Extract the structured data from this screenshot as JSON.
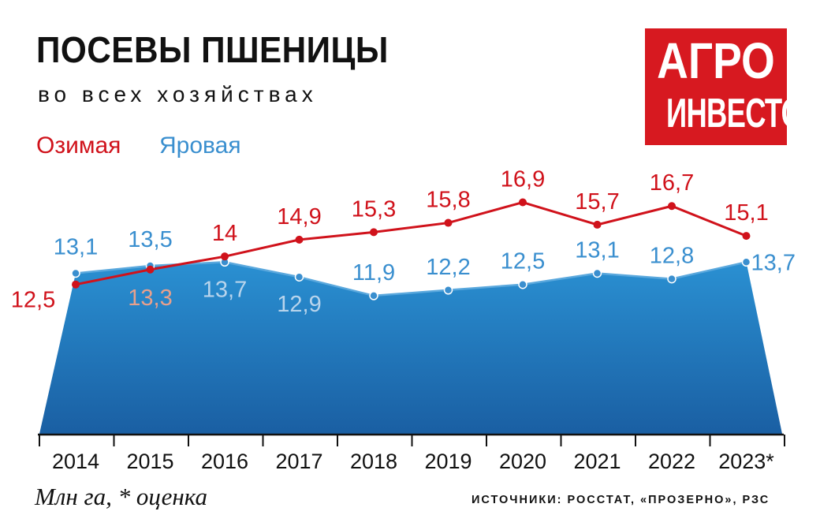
{
  "header": {
    "title": "ПОСЕВЫ ПШЕНИЦЫ",
    "subtitle": "во всех хозяйствах"
  },
  "logo": {
    "line1": "АГРО",
    "line2": "ИНВЕСТОР",
    "color": "#d71920"
  },
  "legend": {
    "winter": "Озимая",
    "spring": "Яровая"
  },
  "colors": {
    "winter": "#d0121b",
    "spring": "#3a8fcf",
    "area_top": "#2a90d2",
    "area_bottom": "#1a5fa3",
    "light_label": "#e8a08c",
    "light_blue_label": "#b8d4ec"
  },
  "chart_data": {
    "type": "line",
    "categories": [
      "2014",
      "2015",
      "2016",
      "2017",
      "2018",
      "2019",
      "2020",
      "2021",
      "2022",
      "2023*"
    ],
    "series": [
      {
        "name": "Озимая",
        "values": [
          12.5,
          13.3,
          14.0,
          14.9,
          15.3,
          15.8,
          16.9,
          15.7,
          16.7,
          15.1
        ],
        "labels": [
          "12,5",
          "13,3",
          "14",
          "14,9",
          "15,3",
          "15,8",
          "16,9",
          "15,7",
          "16,7",
          "15,1"
        ]
      },
      {
        "name": "Яровая",
        "values": [
          13.1,
          13.5,
          13.7,
          12.9,
          11.9,
          12.2,
          12.5,
          13.1,
          12.8,
          13.7
        ],
        "labels": [
          "13,1",
          "13,5",
          "13,7",
          "12,9",
          "11,9",
          "12,2",
          "12,5",
          "13,1",
          "12,8",
          "13,7"
        ]
      }
    ],
    "spring_rendering": "area"
  },
  "footer": {
    "units": "Млн га, * оценка",
    "source": "ИСТОЧНИКИ: РОССТАТ, «ПРОЗЕРНО», РЗС"
  }
}
